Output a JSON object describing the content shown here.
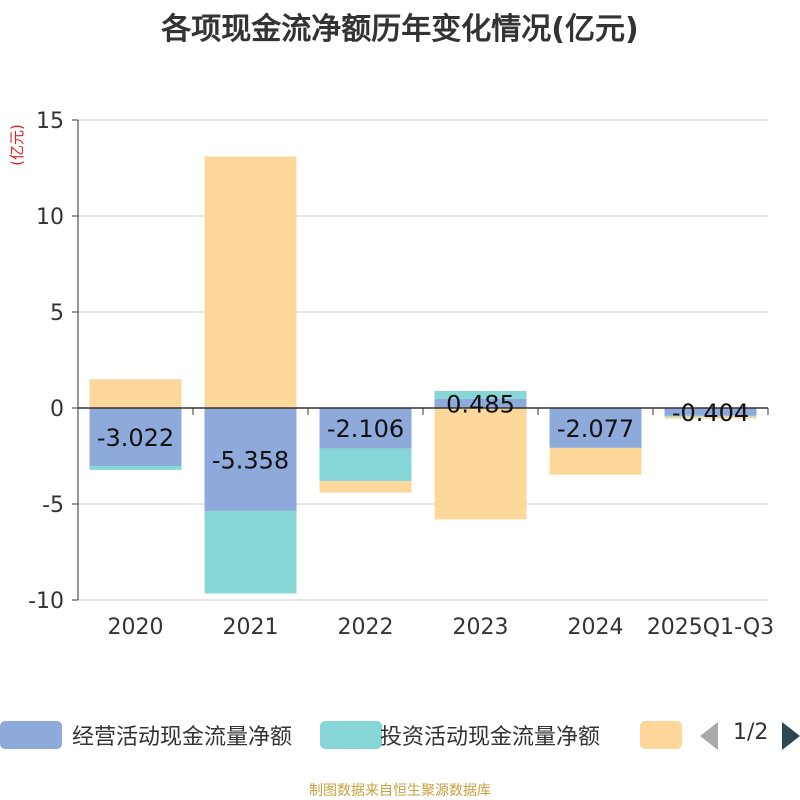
{
  "title": "各项现金流净额历年变化情况(亿元)",
  "source": "制图数据来自恒生聚源数据库",
  "legend": {
    "pager": "1/2"
  },
  "chart_data": {
    "type": "bar",
    "stacked": true,
    "ylabel": "(亿元)",
    "ylim": [
      -10,
      15
    ],
    "yticks": [
      15,
      10,
      5,
      0,
      -5,
      -10
    ],
    "categories": [
      "2020",
      "2021",
      "2022",
      "2023",
      "2024",
      "2025Q1-Q3"
    ],
    "grid": true,
    "legend_position": "bottom",
    "series": [
      {
        "name": "经营活动现金流量净额",
        "color": "#8eaadb",
        "values": [
          -3.022,
          -5.358,
          -2.106,
          0.485,
          -2.077,
          -0.404
        ],
        "labels": [
          "-3.022",
          "-5.358",
          "-2.106",
          "0.485",
          "-2.077",
          "-0.404"
        ]
      },
      {
        "name": "投资活动现金流量净额",
        "color": "#86d6d8",
        "values": [
          -0.2,
          -4.3,
          -1.7,
          0.4,
          0.0,
          -0.05
        ]
      },
      {
        "name": "",
        "color": "#fdd89a",
        "values": [
          1.5,
          13.1,
          -0.6,
          -5.8,
          -1.4,
          -0.1
        ]
      }
    ]
  }
}
